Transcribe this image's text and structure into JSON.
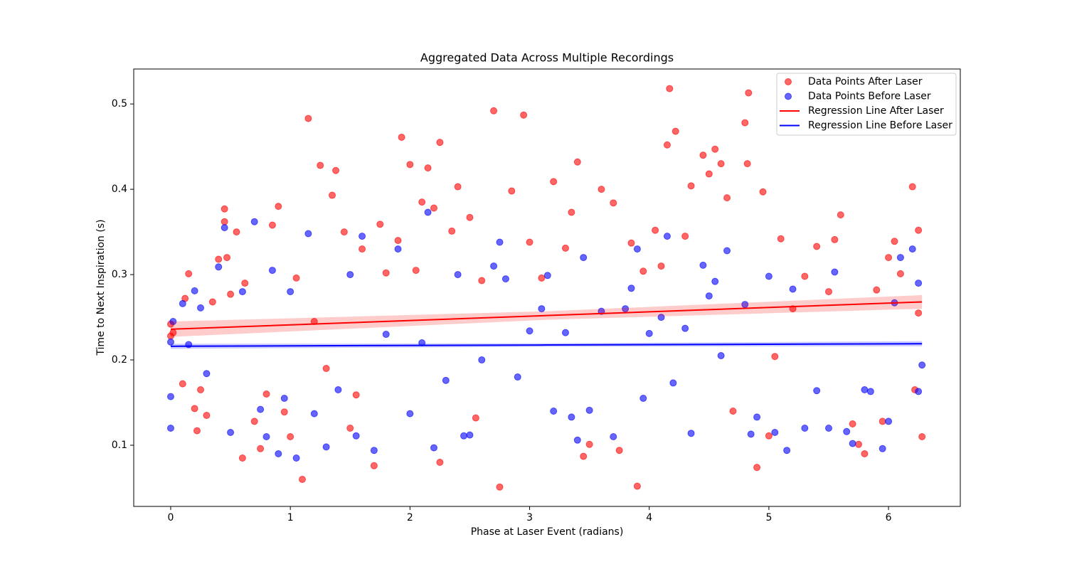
{
  "chart_data": {
    "type": "scatter",
    "title": "Aggregated Data Across Multiple Recordings",
    "x_label": "Phase at Laser Event (radians)",
    "y_label": "Time to Next Inspiration (s)",
    "xlim": [
      -0.309,
      6.6
    ],
    "ylim": [
      0.0283,
      0.541
    ],
    "xticks": [
      0,
      1,
      2,
      3,
      4,
      5,
      6
    ],
    "yticks": [
      0.1,
      0.2,
      0.3,
      0.4,
      0.5
    ],
    "grid": false,
    "legend": "upper right",
    "series": [
      {
        "name": "Data Points After Laser",
        "type": "scatter",
        "color": "#ff0000",
        "x": [
          0,
          0,
          0.02,
          0.1,
          0.12,
          0.15,
          0.2,
          0.22,
          0.25,
          0.3,
          0.35,
          0.4,
          0.45,
          0.45,
          0.47,
          0.5,
          0.55,
          0.6,
          0.62,
          0.7,
          0.75,
          0.8,
          0.85,
          0.9,
          0.95,
          1.0,
          1.05,
          1.1,
          1.15,
          1.2,
          1.25,
          1.3,
          1.35,
          1.38,
          1.45,
          1.5,
          1.55,
          1.6,
          1.7,
          1.75,
          1.8,
          1.9,
          1.93,
          2.0,
          2.05,
          2.1,
          2.15,
          2.2,
          2.25,
          2.25,
          2.35,
          2.4,
          2.5,
          2.55,
          2.6,
          2.7,
          2.75,
          2.85,
          2.95,
          3.0,
          3.1,
          3.2,
          3.3,
          3.35,
          3.4,
          3.45,
          3.5,
          3.6,
          3.7,
          3.75,
          3.85,
          3.9,
          3.95,
          4.05,
          4.1,
          4.15,
          4.17,
          4.22,
          4.3,
          4.35,
          4.45,
          4.5,
          4.55,
          4.6,
          4.65,
          4.7,
          4.8,
          4.83,
          4.82,
          4.9,
          4.95,
          5.0,
          5.05,
          5.1,
          5.2,
          5.3,
          5.4,
          5.5,
          5.55,
          5.6,
          5.7,
          5.75,
          5.8,
          5.9,
          5.95,
          6.0,
          6.05,
          6.1,
          6.2,
          6.25,
          6.28,
          6.25,
          6.22
        ],
        "values": [
          0.242,
          0.228,
          0.232,
          0.172,
          0.272,
          0.301,
          0.143,
          0.117,
          0.165,
          0.135,
          0.268,
          0.318,
          0.377,
          0.362,
          0.32,
          0.277,
          0.35,
          0.085,
          0.29,
          0.128,
          0.096,
          0.16,
          0.358,
          0.38,
          0.139,
          0.11,
          0.296,
          0.06,
          0.483,
          0.245,
          0.428,
          0.19,
          0.393,
          0.422,
          0.35,
          0.12,
          0.159,
          0.33,
          0.076,
          0.359,
          0.302,
          0.34,
          0.461,
          0.429,
          0.305,
          0.385,
          0.425,
          0.378,
          0.455,
          0.08,
          0.351,
          0.403,
          0.367,
          0.132,
          0.293,
          0.492,
          0.051,
          0.398,
          0.487,
          0.338,
          0.296,
          0.409,
          0.331,
          0.373,
          0.432,
          0.087,
          0.101,
          0.4,
          0.384,
          0.094,
          0.337,
          0.052,
          0.304,
          0.352,
          0.31,
          0.452,
          0.518,
          0.468,
          0.345,
          0.404,
          0.44,
          0.418,
          0.447,
          0.43,
          0.39,
          0.14,
          0.478,
          0.513,
          0.43,
          0.074,
          0.397,
          0.111,
          0.204,
          0.342,
          0.26,
          0.298,
          0.333,
          0.28,
          0.341,
          0.37,
          0.125,
          0.101,
          0.09,
          0.282,
          0.128,
          0.32,
          0.339,
          0.301,
          0.403,
          0.352,
          0.11,
          0.255,
          0.165
        ]
      },
      {
        "name": "Data Points Before Laser",
        "type": "scatter",
        "color": "#0000ff",
        "x": [
          0,
          0,
          0,
          0.02,
          0.1,
          0.15,
          0.2,
          0.25,
          0.3,
          0.4,
          0.45,
          0.5,
          0.6,
          0.7,
          0.75,
          0.8,
          0.85,
          0.9,
          0.95,
          1.0,
          1.05,
          1.15,
          1.2,
          1.3,
          1.4,
          1.5,
          1.55,
          1.6,
          1.7,
          1.8,
          1.9,
          2.0,
          2.1,
          2.15,
          2.2,
          2.3,
          2.4,
          2.45,
          2.5,
          2.6,
          2.7,
          2.75,
          2.8,
          2.9,
          3.0,
          3.1,
          3.15,
          3.2,
          3.3,
          3.35,
          3.4,
          3.45,
          3.5,
          3.6,
          3.7,
          3.8,
          3.85,
          3.9,
          3.95,
          4.0,
          4.1,
          4.15,
          4.2,
          4.3,
          4.35,
          4.45,
          4.5,
          4.55,
          4.6,
          4.65,
          4.8,
          4.85,
          4.9,
          5.0,
          5.05,
          5.15,
          5.2,
          5.3,
          5.4,
          5.5,
          5.55,
          5.65,
          5.7,
          5.8,
          5.85,
          5.95,
          6.0,
          6.05,
          6.1,
          6.2,
          6.25,
          6.28,
          6.25
        ],
        "values": [
          0.157,
          0.12,
          0.221,
          0.245,
          0.266,
          0.218,
          0.281,
          0.261,
          0.184,
          0.309,
          0.355,
          0.115,
          0.28,
          0.362,
          0.142,
          0.11,
          0.305,
          0.09,
          0.155,
          0.28,
          0.085,
          0.348,
          0.137,
          0.098,
          0.165,
          0.3,
          0.111,
          0.345,
          0.094,
          0.23,
          0.33,
          0.137,
          0.22,
          0.373,
          0.097,
          0.176,
          0.3,
          0.111,
          0.112,
          0.2,
          0.31,
          0.338,
          0.295,
          0.18,
          0.234,
          0.26,
          0.299,
          0.14,
          0.232,
          0.133,
          0.106,
          0.32,
          0.141,
          0.257,
          0.11,
          0.26,
          0.284,
          0.33,
          0.155,
          0.231,
          0.25,
          0.345,
          0.173,
          0.237,
          0.114,
          0.311,
          0.275,
          0.292,
          0.205,
          0.328,
          0.265,
          0.113,
          0.133,
          0.298,
          0.115,
          0.094,
          0.283,
          0.12,
          0.164,
          0.12,
          0.303,
          0.116,
          0.102,
          0.165,
          0.163,
          0.096,
          0.128,
          0.267,
          0.32,
          0.33,
          0.29,
          0.194,
          0.163
        ]
      },
      {
        "name": "Regression Line After Laser",
        "type": "line",
        "color": "#ff0000",
        "x": [
          0,
          3.14,
          6.28
        ],
        "values": [
          0.236,
          0.252,
          0.268
        ],
        "band_lower": [
          0.227,
          0.247,
          0.26
        ],
        "band_upper": [
          0.245,
          0.257,
          0.276
        ]
      },
      {
        "name": "Regression Line Before Laser",
        "type": "line",
        "color": "#0000ff",
        "x": [
          0,
          3.14,
          6.28
        ],
        "values": [
          0.216,
          0.2175,
          0.219
        ],
        "band_lower": [
          0.213,
          0.2155,
          0.216
        ],
        "band_upper": [
          0.219,
          0.2195,
          0.222
        ]
      }
    ]
  }
}
